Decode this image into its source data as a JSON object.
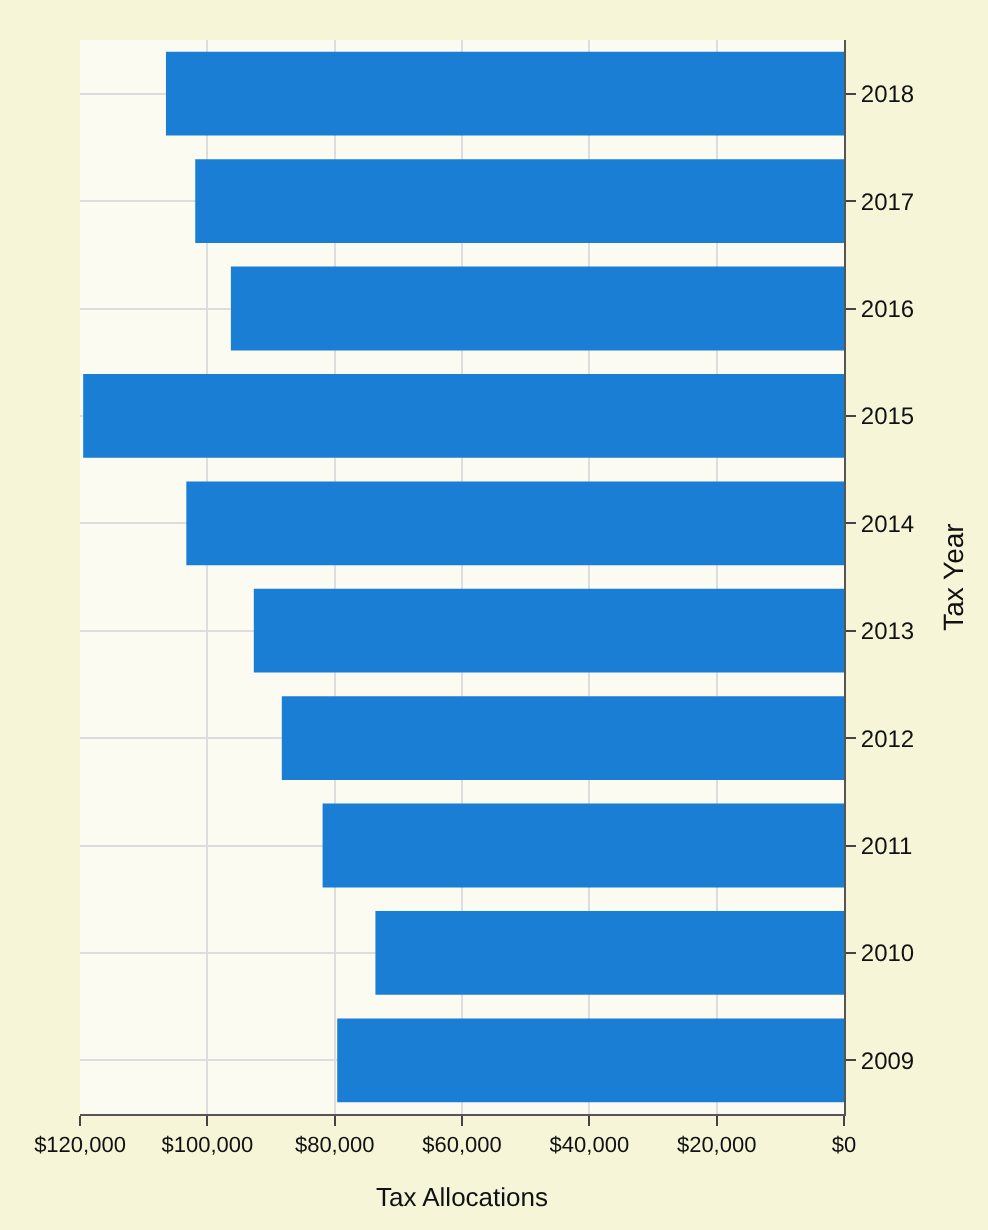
{
  "chart_data": {
    "type": "bar",
    "orientation": "horizontal",
    "xlabel": "Tax Allocations",
    "ylabel": "Tax Year",
    "categories": [
      "2018",
      "2017",
      "2016",
      "2015",
      "2014",
      "2013",
      "2012",
      "2011",
      "2010",
      "2009"
    ],
    "values": [
      106500,
      101900,
      96300,
      119500,
      103300,
      92700,
      88300,
      81900,
      73600,
      79600
    ],
    "color": "#1a7fd4",
    "xlim": [
      120000,
      0
    ],
    "xticks": [
      {
        "value": 120000,
        "label": "$120,000"
      },
      {
        "value": 100000,
        "label": "$100,000"
      },
      {
        "value": 80000,
        "label": "$80,000"
      },
      {
        "value": 60000,
        "label": "$60,000"
      },
      {
        "value": 40000,
        "label": "$40,000"
      },
      {
        "value": 20000,
        "label": "$20,000"
      },
      {
        "value": 0,
        "label": "$0"
      }
    ],
    "grid": true,
    "legend": false
  }
}
